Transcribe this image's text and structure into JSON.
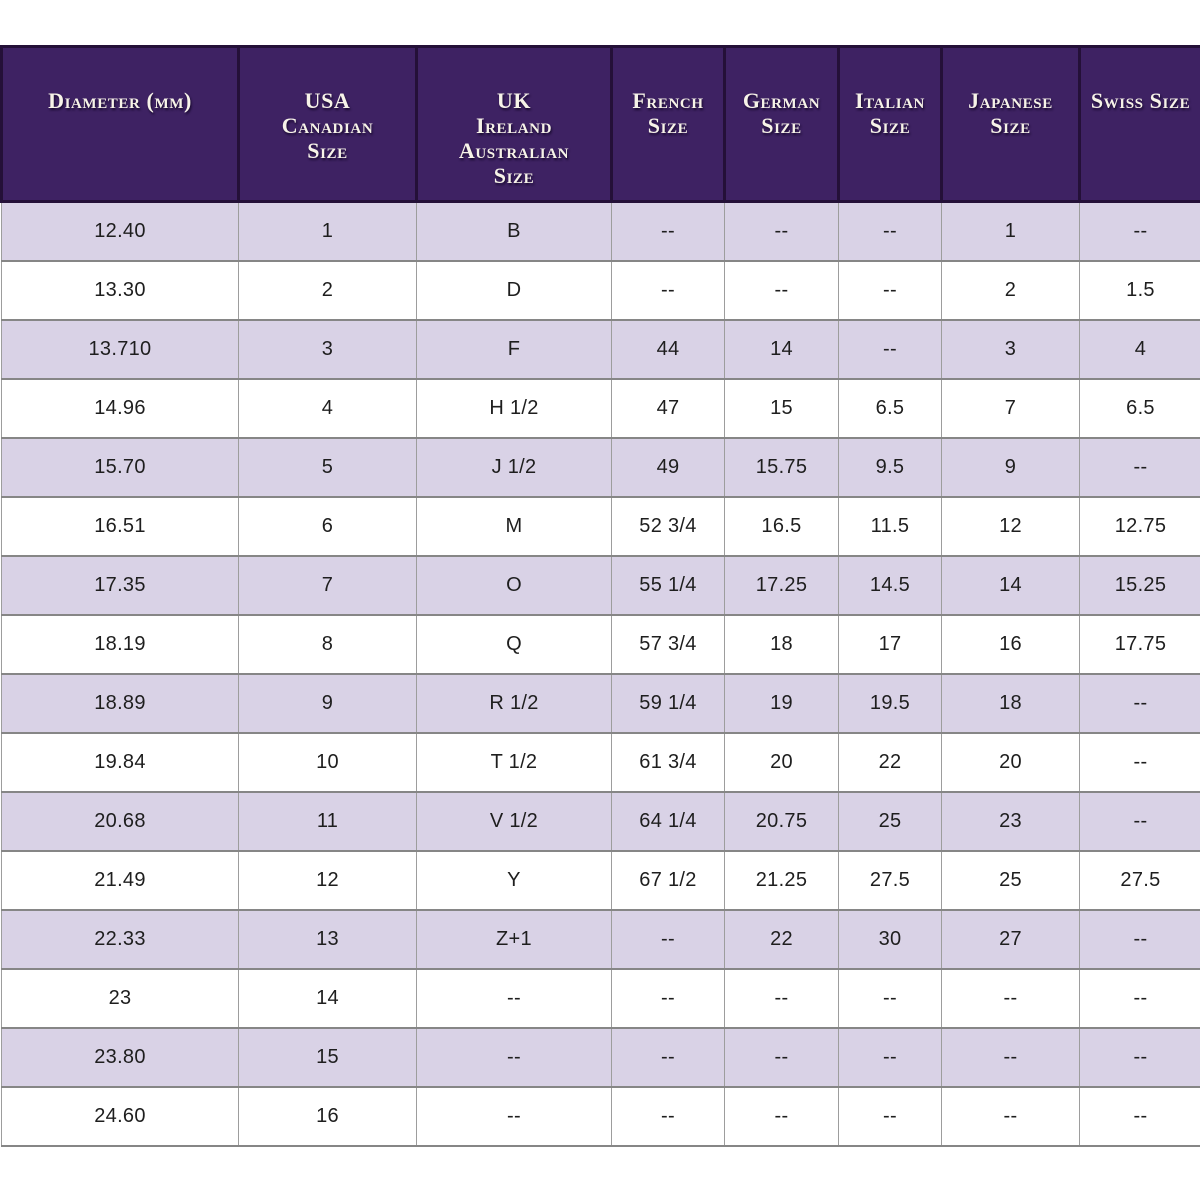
{
  "chart_data": {
    "type": "table",
    "columns": [
      "Diameter (mm)",
      "USA\nCanadian\nSize",
      "UK\nIreland\nAustralian\nSize",
      "French\nSize",
      "German\nSize",
      "Italian\nSize",
      "Japanese Size",
      "Swiss Size"
    ],
    "rows": [
      [
        "12.40",
        "1",
        "B",
        "--",
        "--",
        "--",
        "1",
        "--"
      ],
      [
        "13.30",
        "2",
        "D",
        "--",
        "--",
        "--",
        "2",
        "1.5"
      ],
      [
        "13.710",
        "3",
        "F",
        "44",
        "14",
        "--",
        "3",
        "4"
      ],
      [
        "14.96",
        "4",
        "H 1/2",
        "47",
        "15",
        "6.5",
        "7",
        "6.5"
      ],
      [
        "15.70",
        "5",
        "J 1/2",
        "49",
        "15.75",
        "9.5",
        "9",
        "--"
      ],
      [
        "16.51",
        "6",
        "M",
        "52 3/4",
        "16.5",
        "11.5",
        "12",
        "12.75"
      ],
      [
        "17.35",
        "7",
        "O",
        "55 1/4",
        "17.25",
        "14.5",
        "14",
        "15.25"
      ],
      [
        "18.19",
        "8",
        "Q",
        "57 3/4",
        "18",
        "17",
        "16",
        "17.75"
      ],
      [
        "18.89",
        "9",
        "R 1/2",
        "59 1/4",
        "19",
        "19.5",
        "18",
        "--"
      ],
      [
        "19.84",
        "10",
        "T 1/2",
        "61 3/4",
        "20",
        "22",
        "20",
        "--"
      ],
      [
        "20.68",
        "11",
        "V 1/2",
        "64 1/4",
        "20.75",
        "25",
        "23",
        "--"
      ],
      [
        "21.49",
        "12",
        "Y",
        "67 1/2",
        "21.25",
        "27.5",
        "25",
        "27.5"
      ],
      [
        "22.33",
        "13",
        "Z+1",
        "--",
        "22",
        "30",
        "27",
        "--"
      ],
      [
        "23",
        "14",
        "--",
        "--",
        "--",
        "--",
        "--",
        "--"
      ],
      [
        "23.80",
        "15",
        "--",
        "--",
        "--",
        "--",
        "--",
        "--"
      ],
      [
        "24.60",
        "16",
        "--",
        "--",
        "--",
        "--",
        "--",
        "--"
      ]
    ],
    "layout_hints": {
      "first_row_shaded": true,
      "alternating_rows": true,
      "header_position": "top"
    }
  },
  "colors": {
    "page_bg": "#ffffff",
    "header_bg": "#3e2263",
    "header_border": "#241038",
    "header_text": "#f7f3e8",
    "row_alt_bg": "#d9d2e6",
    "row_bg": "#ffffff",
    "grid_h": "#868686",
    "grid_v": "#9d9d9d",
    "cell_text": "#1e1e1e"
  }
}
